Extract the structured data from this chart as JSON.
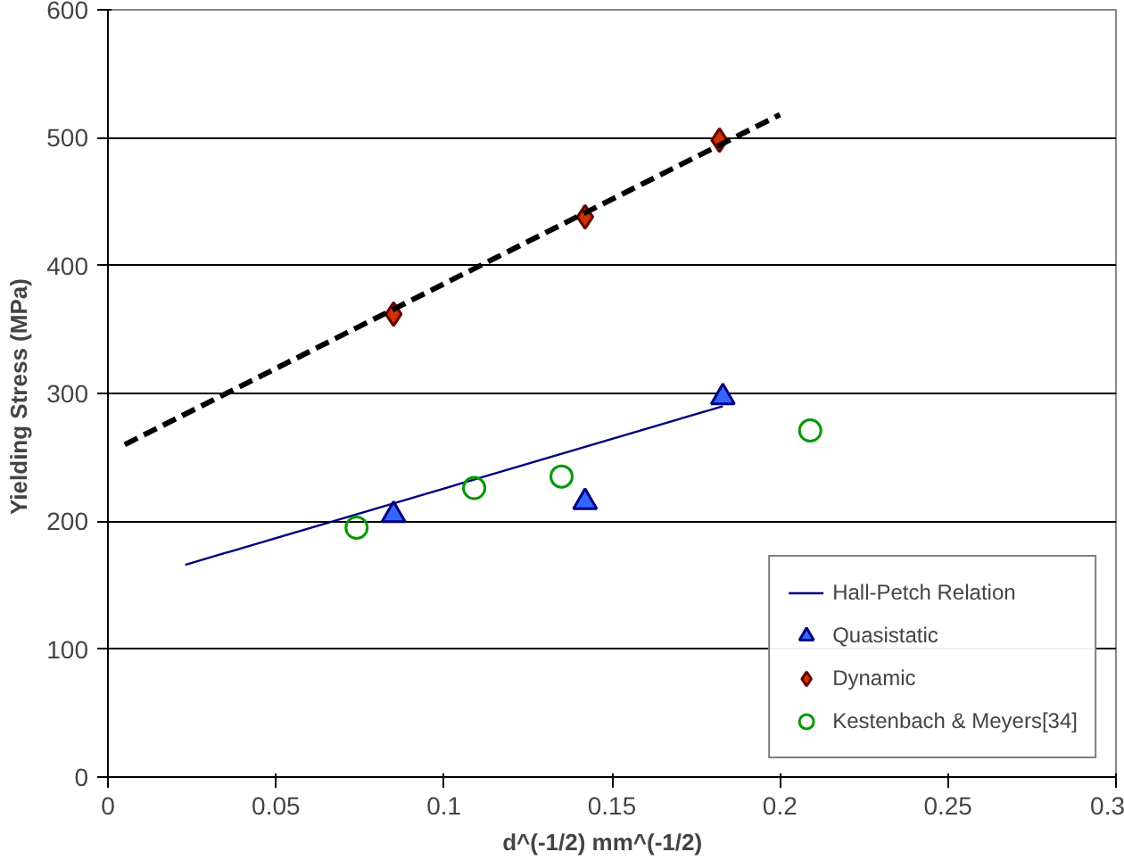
{
  "chart_data": {
    "type": "scatter",
    "xlabel": "d^(-1/2)    mm^(-1/2)",
    "ylabel": "Yielding Stress  (MPa)",
    "xlim": [
      0,
      0.3
    ],
    "xticks": [
      0,
      0.05,
      0.1,
      0.15,
      0.2,
      0.25,
      0.3
    ],
    "ylim": [
      0,
      600
    ],
    "yticks": [
      0,
      100,
      200,
      300,
      400,
      500,
      600
    ],
    "grid": "y",
    "legend": "bottom right",
    "series": [
      {
        "name": "Hall-Petch Relation",
        "type": "line",
        "color": "#000080",
        "line_style": "solid",
        "marker": "none",
        "x": [
          0.023,
          0.183
        ],
        "values": [
          166,
          290
        ]
      },
      {
        "name": "Quasistatic",
        "color": "#3366ff",
        "marker": "triangle",
        "x": [
          0.085,
          0.142,
          0.183
        ],
        "values": [
          205,
          215,
          297
        ]
      },
      {
        "name": "Dynamic",
        "color": "#cc3300",
        "marker": "diamond",
        "x": [
          0.085,
          0.142,
          0.182
        ],
        "values": [
          362,
          438,
          498
        ]
      },
      {
        "name": "Kestenbach & Meyers[34]",
        "color": "#009900",
        "marker": "circle",
        "x": [
          0.074,
          0.109,
          0.135,
          0.209
        ],
        "values": [
          195,
          226,
          235,
          271
        ]
      },
      {
        "type": "line",
        "color": "#000000",
        "line_style": "dashed",
        "marker": "none",
        "x": [
          0.005,
          0.2
        ],
        "values": [
          260,
          518
        ]
      }
    ]
  }
}
